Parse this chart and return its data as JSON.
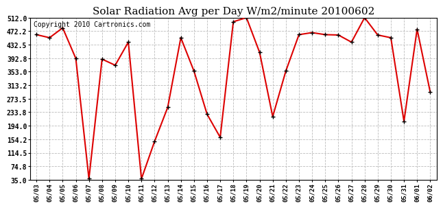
{
  "title": "Solar Radiation Avg per Day W/m2/minute 20100602",
  "copyright": "Copyright 2010 Cartronics.com",
  "dates": [
    "05/03",
    "05/04",
    "05/05",
    "05/06",
    "05/07",
    "05/08",
    "05/09",
    "05/10",
    "05/11",
    "05/12",
    "05/13",
    "05/14",
    "05/15",
    "05/16",
    "05/17",
    "05/18",
    "05/19",
    "05/20",
    "05/21",
    "05/22",
    "05/23",
    "05/24",
    "05/25",
    "05/26",
    "05/27",
    "05/28",
    "05/29",
    "05/30",
    "05/31",
    "06/01",
    "06/02"
  ],
  "values": [
    462,
    453,
    482,
    392,
    38,
    390,
    372,
    440,
    38,
    148,
    248,
    453,
    355,
    228,
    160,
    500,
    512,
    410,
    221,
    355,
    462,
    468,
    462,
    461,
    440,
    512,
    461,
    453,
    207,
    478,
    293
  ],
  "line_color": "#dd0000",
  "marker_color": "#000000",
  "bg_color": "#ffffff",
  "plot_bg_color": "#ffffff",
  "grid_color": "#bbbbbb",
  "yticks": [
    35.0,
    74.8,
    114.5,
    154.2,
    194.0,
    233.8,
    273.5,
    313.2,
    353.0,
    392.8,
    432.5,
    472.2,
    512.0
  ],
  "ymin": 35.0,
  "ymax": 512.0,
  "title_fontsize": 11,
  "copyright_fontsize": 7
}
